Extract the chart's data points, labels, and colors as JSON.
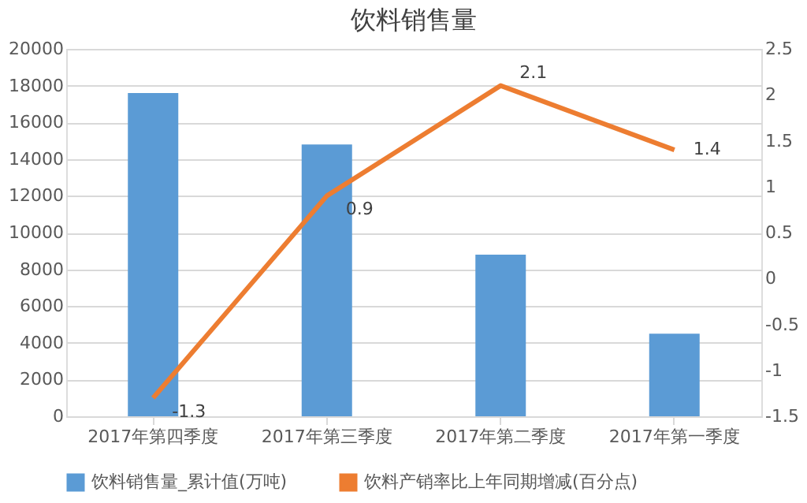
{
  "chart_data": {
    "type": "bar",
    "title": "饮料销售量",
    "categories": [
      "2017年第四季度",
      "2017年第三季度",
      "2017年第二季度",
      "2017年第一季度"
    ],
    "series": [
      {
        "name": "饮料销售量_累计值(万吨)",
        "color": "#5b9bd5",
        "values": [
          17600,
          14800,
          8800,
          4500
        ]
      },
      {
        "name": "饮料产销率比上年同期增减(百分点)",
        "color": "#ed7d31",
        "type": "line",
        "axis": "y2",
        "values": [
          -1.3,
          0.9,
          2.1,
          1.4
        ],
        "value_labels": [
          "-1.3",
          "0.9",
          "2.1",
          "1.4"
        ]
      }
    ],
    "ylim": [
      0,
      20000
    ],
    "yticks": [
      0,
      2000,
      4000,
      6000,
      8000,
      10000,
      12000,
      14000,
      16000,
      18000,
      20000
    ],
    "y2lim": [
      -1.5,
      2.5
    ],
    "y2ticks": [
      -1.5,
      -1,
      -0.5,
      0,
      0.5,
      1,
      1.5,
      2,
      2.5
    ],
    "grid": "y",
    "legend": "bottom",
    "marker": "none"
  }
}
